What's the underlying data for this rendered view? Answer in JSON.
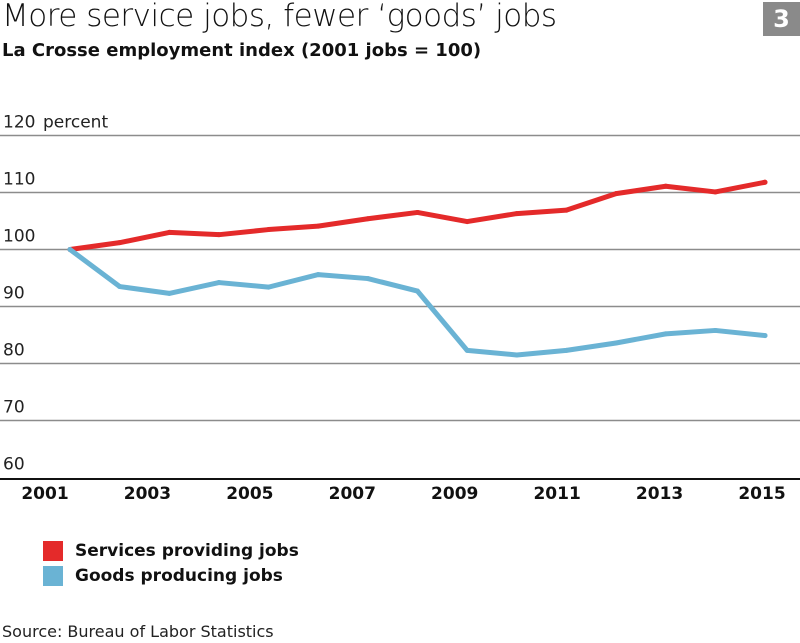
{
  "header": {
    "title": "More service jobs, fewer ‘goods’ jobs",
    "subtitle": "La Crosse employment index (2001 jobs = 100)",
    "badge": "3"
  },
  "source": "Source: Bureau of Labor Statistics",
  "chart_data": {
    "type": "line",
    "title": "More service jobs, fewer ‘goods’ jobs",
    "subtitle": "La Crosse employment index (2001 jobs = 100)",
    "ylabel": "percent",
    "xlabel": "",
    "ylim": [
      60,
      120
    ],
    "yticks": [
      60,
      70,
      80,
      90,
      100,
      110,
      120
    ],
    "xlim": [
      2001,
      2015
    ],
    "xticks": [
      2001,
      2003,
      2005,
      2007,
      2009,
      2011,
      2013,
      2015
    ],
    "grid": true,
    "legend_position": "bottom-left",
    "x": [
      2001,
      2002,
      2003,
      2004,
      2005,
      2006,
      2007,
      2008,
      2009,
      2010,
      2011,
      2012,
      2013,
      2014,
      2015
    ],
    "series": [
      {
        "name": "Services providing jobs",
        "color": "#e42a2a",
        "values": [
          100,
          101.2,
          103,
          102.6,
          103.5,
          104.1,
          105.4,
          106.5,
          104.9,
          106.3,
          106.9,
          109.8,
          111.1,
          110.1,
          111.8
        ]
      },
      {
        "name": "Goods producing jobs",
        "color": "#6ab3d4",
        "values": [
          100,
          93.5,
          92.3,
          94.2,
          93.4,
          95.6,
          94.9,
          92.7,
          82.3,
          81.5,
          82.3,
          83.6,
          85.2,
          85.8,
          84.9
        ]
      }
    ]
  }
}
